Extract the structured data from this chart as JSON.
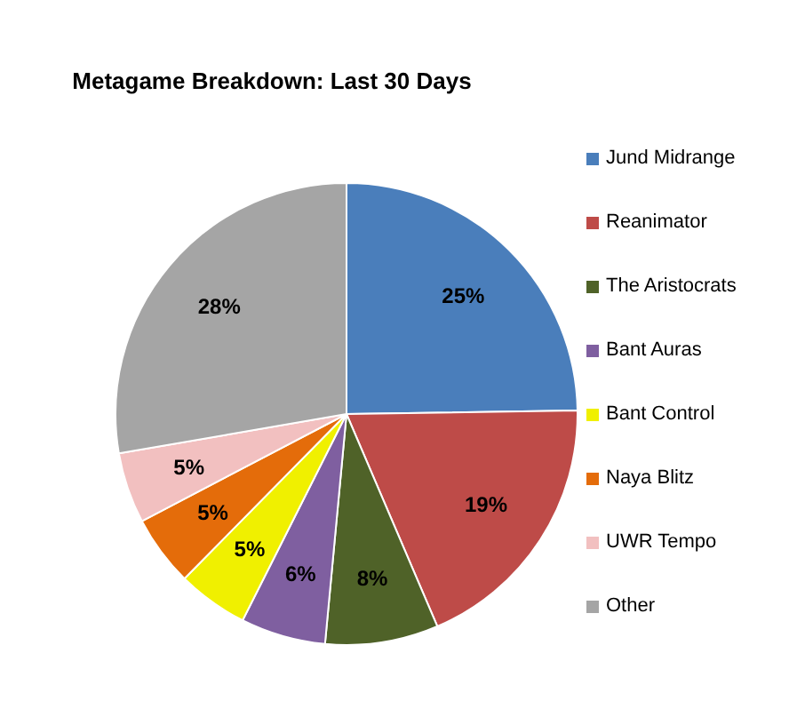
{
  "chart_data": {
    "type": "pie",
    "title": "Metagame Breakdown: Last 30 Days",
    "categories": [
      "Jund Midrange",
      "Reanimator",
      "The Aristocrats",
      "Bant Auras",
      "Bant Control",
      "Naya Blitz",
      "UWR Tempo",
      "Other"
    ],
    "values": [
      25,
      19,
      8,
      6,
      5,
      5,
      5,
      28
    ],
    "value_labels": [
      "25%",
      "19%",
      "8%",
      "6%",
      "5%",
      "5%",
      "5%",
      "28%"
    ],
    "colors": [
      "#4a7ebb",
      "#be4b48",
      "#4f6228",
      "#7f5fa0",
      "#f0f000",
      "#e46c0a",
      "#f2c0c0",
      "#a5a5a5"
    ],
    "legend": "right"
  }
}
